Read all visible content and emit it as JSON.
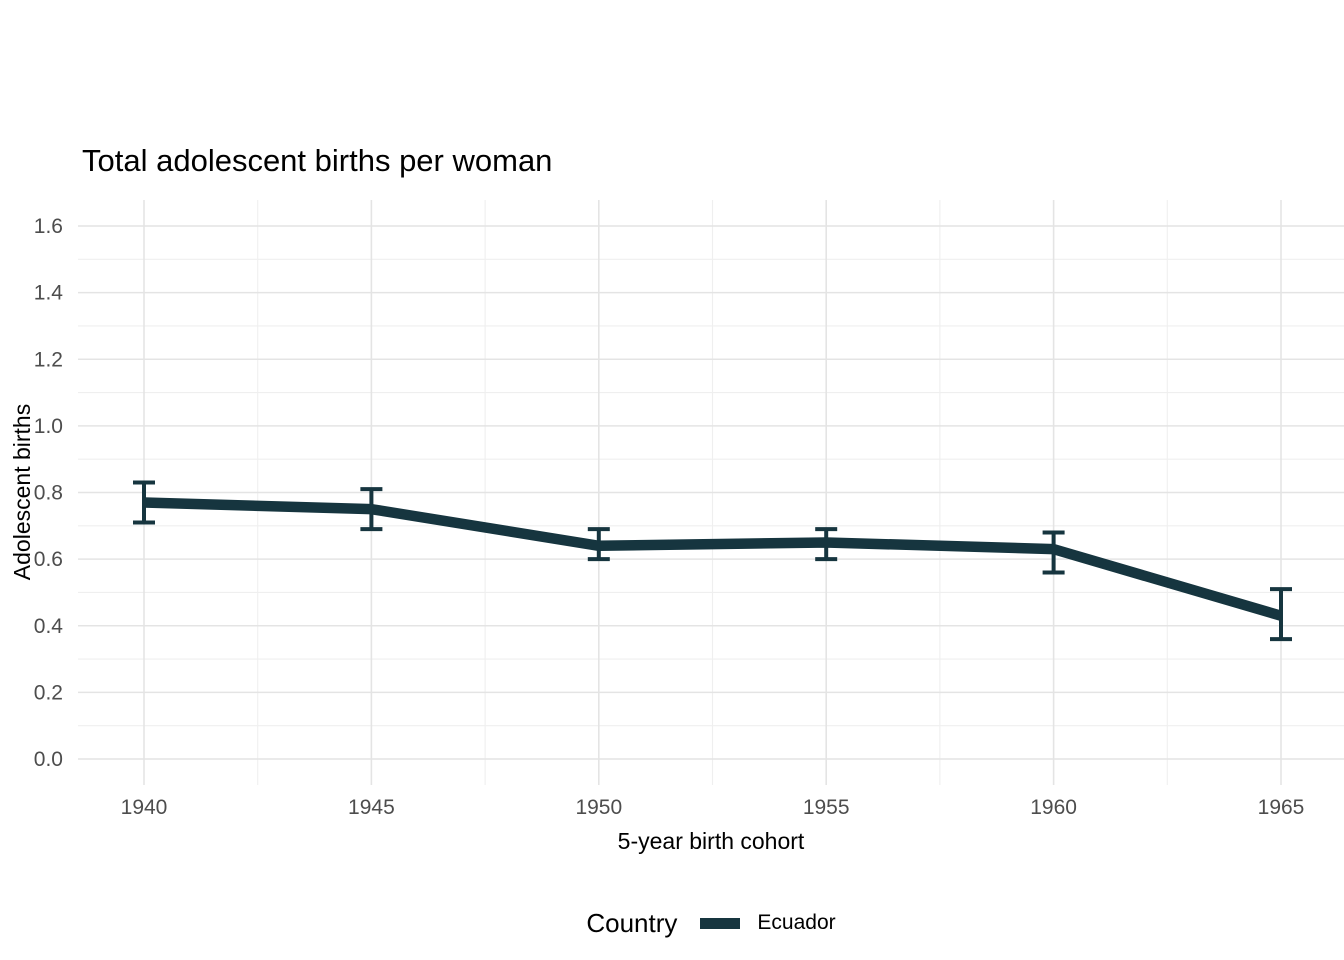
{
  "title": "Total adolescent births per woman",
  "axes": {
    "x_label": "5-year birth cohort",
    "y_label": "Adolescent births"
  },
  "legend": {
    "title": "Country",
    "items": [
      {
        "label": "Ecuador",
        "color": "#16353F"
      }
    ]
  },
  "colors": {
    "series": "#16353F",
    "grid_major": "#E4E4E4",
    "grid_minor": "#EFEFEF",
    "tick_label": "#4D4D4D",
    "text": "#000000",
    "background": "#FFFFFF"
  },
  "chart_data": {
    "type": "line",
    "title": "Total adolescent births per woman",
    "xlabel": "5-year birth cohort",
    "ylabel": "Adolescent births",
    "x": [
      1940,
      1945,
      1950,
      1955,
      1960,
      1965
    ],
    "xtick_labels": [
      "1940",
      "1945",
      "1950",
      "1955",
      "1960",
      "1965"
    ],
    "yticks": [
      0.0,
      0.2,
      0.4,
      0.6,
      0.8,
      1.0,
      1.2,
      1.4,
      1.6
    ],
    "ytick_labels": [
      "0.0",
      "0.2",
      "0.4",
      "0.6",
      "0.8",
      "1.0",
      "1.2",
      "1.4",
      "1.6"
    ],
    "ylim": [
      0.0,
      1.6
    ],
    "grid": "horizontal and vertical, major plus minor, light gray on white",
    "legend_position": "bottom-center",
    "error_bars": true,
    "series": [
      {
        "name": "Ecuador",
        "color": "#16353F",
        "values": [
          0.77,
          0.75,
          0.64,
          0.65,
          0.63,
          0.43
        ],
        "ci_low": [
          0.71,
          0.69,
          0.6,
          0.6,
          0.56,
          0.36
        ],
        "ci_high": [
          0.83,
          0.81,
          0.69,
          0.69,
          0.68,
          0.51
        ]
      }
    ]
  }
}
